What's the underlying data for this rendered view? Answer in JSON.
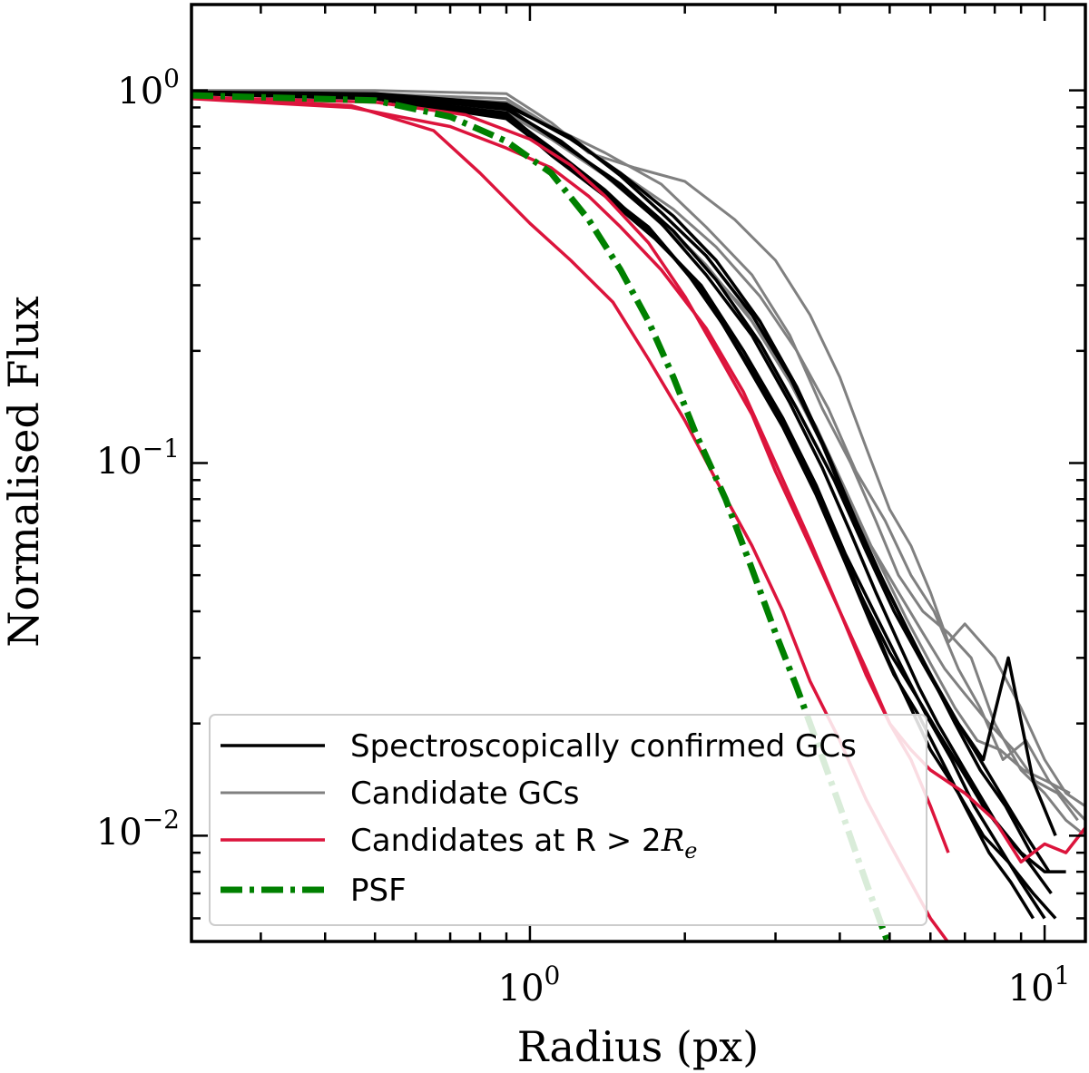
{
  "chart_data": {
    "type": "line",
    "title": "",
    "xlabel": "Radius (px)",
    "ylabel": "Normalised Flux",
    "xscale": "log",
    "yscale": "log",
    "xlim": [
      0.22,
      12
    ],
    "ylim": [
      0.0052,
      1.7
    ],
    "xticks": [
      {
        "base": "10",
        "exp": "0",
        "value": 1
      },
      {
        "base": "10",
        "exp": "1",
        "value": 10
      }
    ],
    "yticks": [
      {
        "base": "10",
        "exp": "0",
        "value": 1
      },
      {
        "base": "10",
        "exp": "−1",
        "value": 0.1
      },
      {
        "base": "10",
        "exp": "−2",
        "value": 0.01
      }
    ],
    "legend_position": "lower-left",
    "colors": {
      "confirmed": "#000000",
      "candidate": "#808080",
      "outer": "#dc143c",
      "psf": "#008000"
    },
    "legend": [
      {
        "label": "Spectroscopically confirmed GCs",
        "style": "confirmed"
      },
      {
        "label": "Candidate GCs",
        "style": "candidate"
      },
      {
        "label": "Candidates at R > 2",
        "math": "R",
        "math_sub": "e",
        "style": "outer"
      },
      {
        "label": "PSF",
        "style": "psf"
      }
    ],
    "series": [
      {
        "group": "psf",
        "x": [
          0.22,
          0.5,
          0.7,
          0.9,
          1.1,
          1.3,
          1.5,
          1.7,
          1.9,
          2.1,
          2.4,
          2.7,
          3.0,
          3.3,
          3.6,
          4.0,
          4.5,
          5.0
        ],
        "y": [
          0.97,
          0.94,
          0.85,
          0.73,
          0.6,
          0.45,
          0.33,
          0.24,
          0.17,
          0.12,
          0.08,
          0.052,
          0.035,
          0.025,
          0.018,
          0.012,
          0.0075,
          0.005
        ]
      },
      {
        "group": "outer",
        "x": [
          0.22,
          0.45,
          0.65,
          0.8,
          1.0,
          1.2,
          1.45,
          1.7,
          2.0,
          2.3,
          2.7,
          3.1,
          3.5,
          4.0,
          4.5,
          5.0,
          6.0,
          7.0,
          8.5,
          10.0,
          12.0
        ],
        "y": [
          0.96,
          0.91,
          0.78,
          0.6,
          0.44,
          0.35,
          0.27,
          0.19,
          0.13,
          0.09,
          0.06,
          0.04,
          0.026,
          0.018,
          0.0125,
          0.0095,
          0.006,
          0.0045,
          0.004,
          0.004,
          0.004
        ]
      },
      {
        "group": "outer",
        "x": [
          0.22,
          0.45,
          0.7,
          0.9,
          1.1,
          1.3,
          1.5,
          1.8,
          2.2,
          2.6,
          3.0,
          3.5,
          4.0,
          4.5,
          5.0,
          5.5,
          6.0,
          6.5
        ],
        "y": [
          0.95,
          0.9,
          0.8,
          0.7,
          0.62,
          0.52,
          0.43,
          0.33,
          0.23,
          0.155,
          0.1,
          0.062,
          0.04,
          0.027,
          0.02,
          0.016,
          0.012,
          0.009
        ]
      },
      {
        "group": "outer",
        "x": [
          0.22,
          0.5,
          0.75,
          1.0,
          1.2,
          1.4,
          1.7,
          2.0,
          2.3,
          2.7,
          3.0,
          3.5,
          4.0,
          4.5,
          5.0,
          5.5,
          6.0,
          7.0,
          8.0,
          9.0,
          10.0,
          11.0,
          12.0
        ],
        "y": [
          0.96,
          0.93,
          0.86,
          0.74,
          0.63,
          0.52,
          0.39,
          0.28,
          0.2,
          0.135,
          0.095,
          0.06,
          0.04,
          0.028,
          0.02,
          0.017,
          0.015,
          0.013,
          0.011,
          0.0085,
          0.0095,
          0.009,
          0.0105
        ]
      },
      {
        "group": "candidate",
        "x": [
          0.22,
          0.5,
          0.9,
          1.1,
          1.3,
          1.6,
          2.0,
          2.5,
          3.0,
          3.5,
          4.0,
          4.5,
          5.0,
          5.5,
          6.0,
          6.5,
          7.0,
          8.0,
          9.0,
          10.0,
          11.0,
          12.0
        ],
        "y": [
          1.0,
          1.0,
          0.98,
          0.82,
          0.68,
          0.62,
          0.57,
          0.45,
          0.35,
          0.25,
          0.17,
          0.11,
          0.075,
          0.06,
          0.045,
          0.033,
          0.037,
          0.03,
          0.022,
          0.016,
          0.013,
          0.012
        ]
      },
      {
        "group": "candidate",
        "x": [
          0.22,
          0.5,
          0.9,
          1.1,
          1.4,
          1.8,
          2.2,
          2.7,
          3.2,
          3.7,
          4.2,
          4.7,
          5.2,
          5.8,
          6.5,
          7.2,
          8.0,
          9.0,
          10.0,
          11.0,
          12.0
        ],
        "y": [
          0.99,
          0.98,
          0.95,
          0.8,
          0.68,
          0.56,
          0.43,
          0.32,
          0.22,
          0.14,
          0.1,
          0.07,
          0.05,
          0.04,
          0.035,
          0.03,
          0.02,
          0.015,
          0.013,
          0.011,
          0.01
        ]
      },
      {
        "group": "candidate",
        "x": [
          0.22,
          0.5,
          0.9,
          1.2,
          1.5,
          1.9,
          2.3,
          2.8,
          3.3,
          3.8,
          4.3,
          4.9,
          5.5,
          6.1,
          6.8,
          7.5,
          8.3,
          9.2,
          10.2,
          11.3,
          12.0
        ],
        "y": [
          0.99,
          0.97,
          0.93,
          0.75,
          0.6,
          0.48,
          0.38,
          0.28,
          0.2,
          0.14,
          0.095,
          0.07,
          0.05,
          0.04,
          0.028,
          0.022,
          0.016,
          0.018,
          0.014,
          0.012,
          0.011
        ]
      },
      {
        "group": "candidate",
        "x": [
          0.22,
          0.5,
          0.85,
          1.1,
          1.4,
          1.7,
          2.1,
          2.6,
          3.1,
          3.6,
          4.1,
          4.6,
          5.2,
          5.8,
          6.4,
          7.0,
          7.8,
          8.7,
          9.6,
          10.6,
          11.6
        ],
        "y": [
          0.99,
          0.97,
          0.91,
          0.74,
          0.59,
          0.47,
          0.36,
          0.26,
          0.18,
          0.125,
          0.085,
          0.06,
          0.045,
          0.035,
          0.028,
          0.024,
          0.02,
          0.017,
          0.014,
          0.013,
          0.011
        ]
      },
      {
        "group": "candidate",
        "x": [
          0.22,
          0.5,
          0.9,
          1.15,
          1.45,
          1.8,
          2.2,
          2.7,
          3.2,
          3.7,
          4.2,
          4.8,
          5.4,
          6.0,
          6.7,
          7.4,
          8.2,
          9.1,
          10.1,
          11.2
        ],
        "y": [
          0.98,
          0.95,
          0.88,
          0.72,
          0.58,
          0.45,
          0.34,
          0.24,
          0.165,
          0.112,
          0.077,
          0.053,
          0.038,
          0.029,
          0.022,
          0.018,
          0.017,
          0.015,
          0.014,
          0.013
        ]
      },
      {
        "group": "confirmed",
        "x": [
          0.22,
          0.5,
          0.9,
          1.15,
          1.45,
          1.8,
          2.2,
          2.7,
          3.2,
          3.7,
          4.2,
          4.7,
          5.2,
          5.7,
          6.2,
          7.0,
          8.0,
          9.0,
          10.0,
          11.0
        ],
        "y": [
          0.99,
          0.97,
          0.89,
          0.73,
          0.57,
          0.44,
          0.32,
          0.22,
          0.145,
          0.097,
          0.065,
          0.045,
          0.033,
          0.025,
          0.02,
          0.015,
          0.011,
          0.009,
          0.008,
          0.008
        ]
      },
      {
        "group": "confirmed",
        "x": [
          0.22,
          0.5,
          0.9,
          1.1,
          1.4,
          1.7,
          2.1,
          2.5,
          3.0,
          3.5,
          4.0,
          4.5,
          5.0,
          5.5,
          6.0,
          6.8,
          7.6,
          8.5,
          9.5,
          10.5
        ],
        "y": [
          0.99,
          0.96,
          0.86,
          0.7,
          0.54,
          0.42,
          0.31,
          0.21,
          0.14,
          0.092,
          0.06,
          0.041,
          0.029,
          0.022,
          0.017,
          0.013,
          0.01,
          0.0085,
          0.007,
          0.006
        ]
      },
      {
        "group": "confirmed",
        "x": [
          0.22,
          0.5,
          0.9,
          1.2,
          1.5,
          1.9,
          2.3,
          2.8,
          3.3,
          3.8,
          4.3,
          4.9,
          5.5,
          6.1,
          6.8,
          7.6,
          8.5,
          9.5,
          10.5
        ],
        "y": [
          0.99,
          0.98,
          0.92,
          0.74,
          0.6,
          0.46,
          0.35,
          0.24,
          0.16,
          0.105,
          0.07,
          0.047,
          0.034,
          0.026,
          0.02,
          0.016,
          0.03,
          0.014,
          0.01
        ]
      },
      {
        "group": "confirmed",
        "x": [
          0.22,
          0.5,
          0.9,
          1.1,
          1.4,
          1.8,
          2.2,
          2.6,
          3.1,
          3.6,
          4.1,
          4.6,
          5.1,
          5.7,
          6.3,
          7.0,
          7.8,
          8.6,
          9.5
        ],
        "y": [
          0.98,
          0.95,
          0.84,
          0.68,
          0.53,
          0.39,
          0.28,
          0.19,
          0.125,
          0.082,
          0.054,
          0.037,
          0.027,
          0.021,
          0.016,
          0.012,
          0.009,
          0.0075,
          0.006
        ]
      },
      {
        "group": "confirmed",
        "x": [
          0.22,
          0.5,
          0.9,
          1.15,
          1.5,
          1.9,
          2.3,
          2.8,
          3.3,
          3.9,
          4.5,
          5.1,
          5.8,
          6.5,
          7.3,
          8.2,
          9.2,
          10.2
        ],
        "y": [
          0.99,
          0.97,
          0.9,
          0.72,
          0.56,
          0.42,
          0.31,
          0.21,
          0.14,
          0.09,
          0.058,
          0.04,
          0.029,
          0.022,
          0.017,
          0.013,
          0.01,
          0.008
        ]
      },
      {
        "group": "confirmed",
        "x": [
          0.22,
          0.5,
          0.9,
          1.1,
          1.35,
          1.7,
          2.0,
          2.4,
          2.9,
          3.4,
          3.9,
          4.4,
          5.0,
          5.6,
          6.2,
          6.9,
          7.6,
          8.4,
          9.3,
          10.3
        ],
        "y": [
          0.98,
          0.96,
          0.87,
          0.69,
          0.55,
          0.43,
          0.33,
          0.23,
          0.15,
          0.1,
          0.066,
          0.044,
          0.031,
          0.024,
          0.019,
          0.015,
          0.012,
          0.01,
          0.0085,
          0.007
        ]
      },
      {
        "group": "confirmed",
        "x": [
          0.22,
          0.5,
          0.9,
          1.2,
          1.5,
          1.8,
          2.2,
          2.7,
          3.2,
          3.7,
          4.2,
          4.8,
          5.4,
          6.0,
          6.7,
          7.5,
          8.4,
          9.4
        ],
        "y": [
          0.99,
          0.97,
          0.91,
          0.75,
          0.59,
          0.47,
          0.36,
          0.25,
          0.17,
          0.112,
          0.074,
          0.05,
          0.036,
          0.027,
          0.02,
          0.015,
          0.012,
          0.009
        ]
      },
      {
        "group": "confirmed",
        "x": [
          0.22,
          0.5,
          0.9,
          1.1,
          1.4,
          1.75,
          2.15,
          2.6,
          3.1,
          3.6,
          4.1,
          4.7,
          5.3,
          5.9,
          6.6,
          7.3,
          8.1,
          9.0,
          10.0
        ],
        "y": [
          0.98,
          0.95,
          0.85,
          0.67,
          0.52,
          0.4,
          0.3,
          0.2,
          0.132,
          0.087,
          0.057,
          0.039,
          0.028,
          0.021,
          0.016,
          0.012,
          0.0095,
          0.0075,
          0.006
        ]
      }
    ]
  }
}
